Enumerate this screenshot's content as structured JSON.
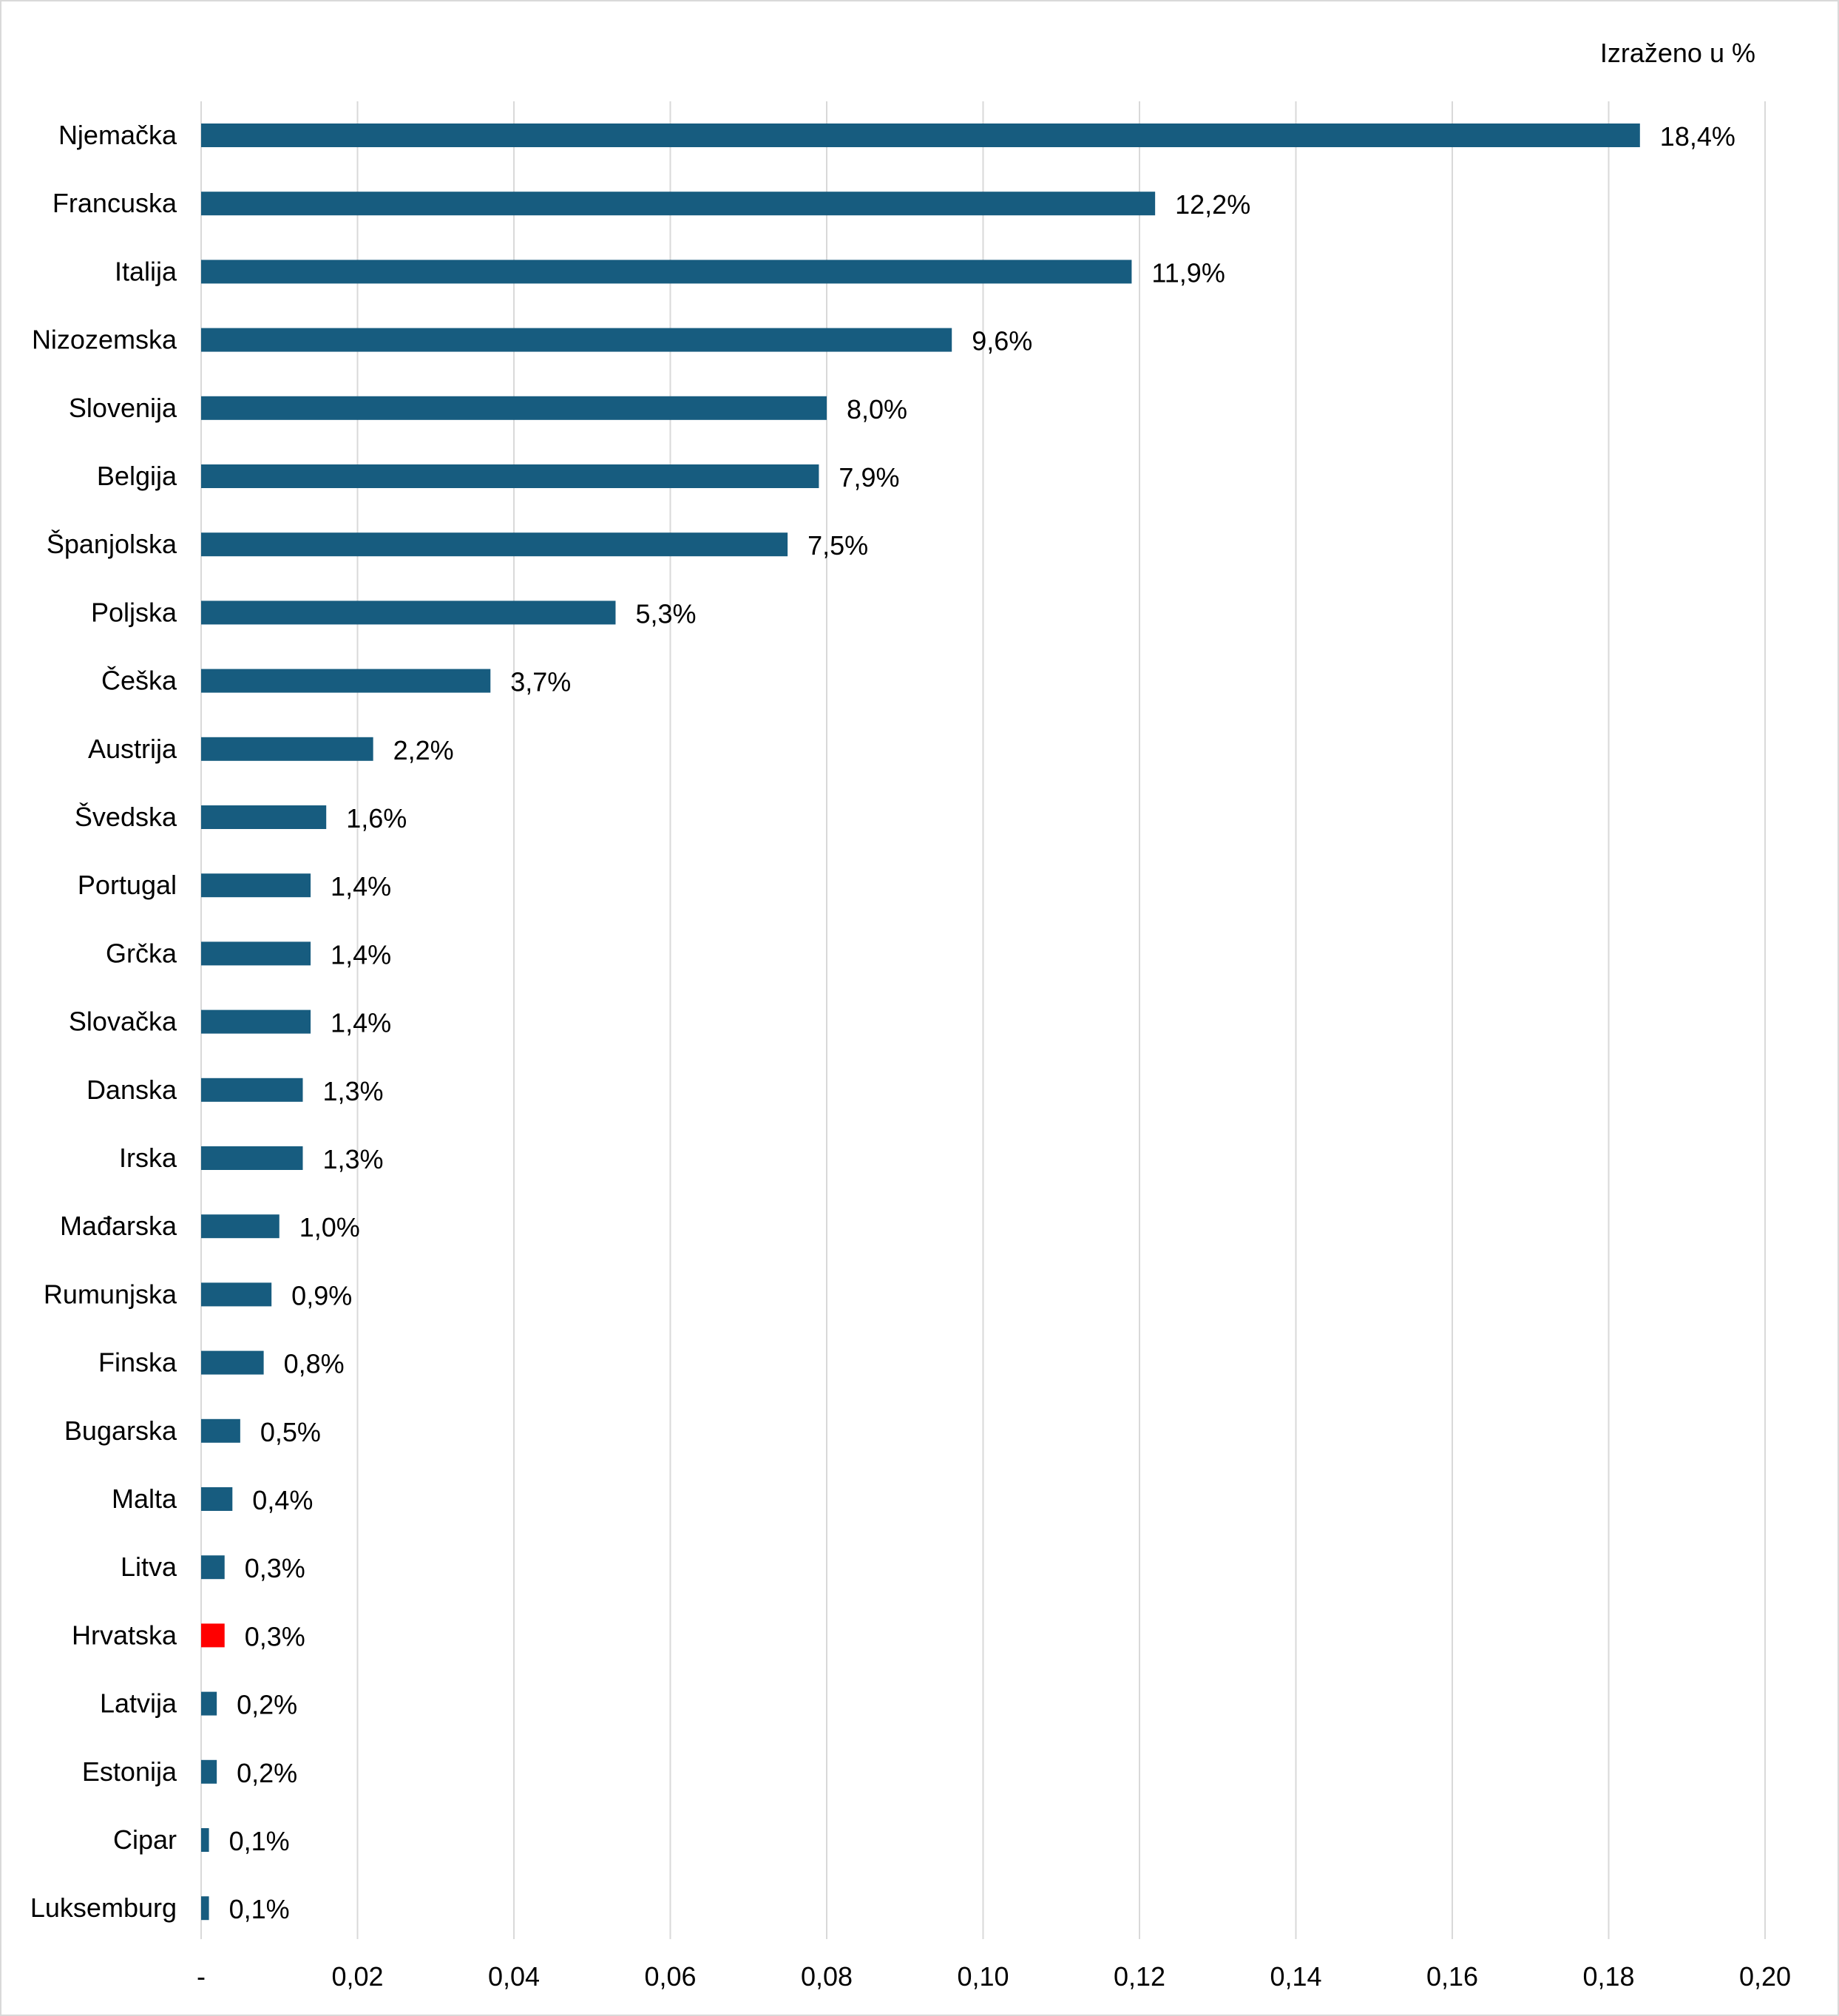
{
  "chart_data": {
    "type": "bar",
    "orientation": "horizontal",
    "unit_note": "Izraženo u %",
    "categories": [
      "Njemačka",
      "Francuska",
      "Italija",
      "Nizozemska",
      "Slovenija",
      "Belgija",
      "Španjolska",
      "Poljska",
      "Češka",
      "Austrija",
      "Švedska",
      "Portugal",
      "Grčka",
      "Slovačka",
      "Danska",
      "Irska",
      "Mađarska",
      "Rumunjska",
      "Finska",
      "Bugarska",
      "Malta",
      "Litva",
      "Hrvatska",
      "Latvija",
      "Estonija",
      "Cipar",
      "Luksemburg"
    ],
    "values": [
      0.184,
      0.122,
      0.119,
      0.096,
      0.08,
      0.079,
      0.075,
      0.053,
      0.037,
      0.022,
      0.016,
      0.014,
      0.014,
      0.014,
      0.013,
      0.013,
      0.01,
      0.009,
      0.008,
      0.005,
      0.004,
      0.003,
      0.003,
      0.002,
      0.002,
      0.001,
      0.001
    ],
    "value_labels": [
      "18,4%",
      "12,2%",
      "11,9%",
      "9,6%",
      "8,0%",
      "7,9%",
      "7,5%",
      "5,3%",
      "3,7%",
      "2,2%",
      "1,6%",
      "1,4%",
      "1,4%",
      "1,4%",
      "1,3%",
      "1,3%",
      "1,0%",
      "0,9%",
      "0,8%",
      "0,5%",
      "0,4%",
      "0,3%",
      "0,3%",
      "0,2%",
      "0,2%",
      "0,1%",
      "0,1%"
    ],
    "highlight": "Hrvatska",
    "colors": {
      "bar": "#175c7f",
      "highlight": "#ff0000",
      "grid": "#d9d9d9"
    },
    "xlim": [
      0,
      0.2
    ],
    "xticks": [
      0,
      0.02,
      0.04,
      0.06,
      0.08,
      0.1,
      0.12,
      0.14,
      0.16,
      0.18,
      0.2
    ],
    "xtick_labels": [
      "-",
      "0,02",
      "0,04",
      "0,06",
      "0,08",
      "0,10",
      "0,12",
      "0,14",
      "0,16",
      "0,18",
      "0,20"
    ],
    "grid": true,
    "legend": "none"
  }
}
